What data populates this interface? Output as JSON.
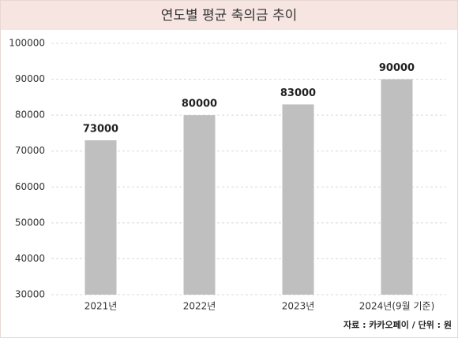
{
  "chart_data": {
    "type": "bar",
    "title": "연도별 평균 축의금 추이",
    "categories": [
      "2021년",
      "2022년",
      "2023년",
      "2024년(9월 기준)"
    ],
    "values": [
      73000,
      80000,
      83000,
      90000
    ],
    "color": "#bfbfbf",
    "ylim": [
      30000,
      100000
    ],
    "yticks": [
      30000,
      40000,
      50000,
      60000,
      70000,
      80000,
      90000,
      100000
    ],
    "grid": true,
    "source": "자료 : 카카오페이 / 단위 : 원"
  }
}
